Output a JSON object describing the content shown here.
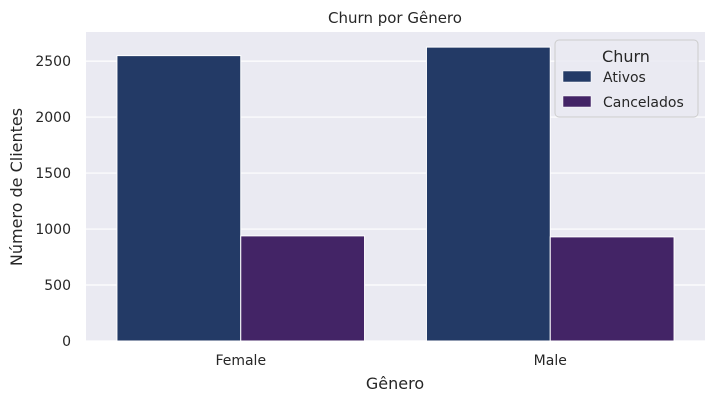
{
  "chart_data": {
    "type": "bar",
    "title": "Churn por Gênero",
    "xlabel": "Gênero",
    "ylabel": "Número de Clientes",
    "categories": [
      "Female",
      "Male"
    ],
    "series": [
      {
        "name": "Ativos",
        "values": [
          2549,
          2625
        ],
        "color": "#233a66"
      },
      {
        "name": "Cancelados",
        "values": [
          939,
          930
        ],
        "color": "#432466"
      }
    ],
    "ylim": [
      0,
      2760
    ],
    "yticks": [
      0,
      500,
      1000,
      1500,
      2000,
      2500
    ],
    "grid": true,
    "legend": {
      "title": "Churn",
      "position": "top-right"
    },
    "colors": {
      "plot_background": "#eaeaf2",
      "grid": "#ffffff",
      "text": "#262626"
    }
  }
}
